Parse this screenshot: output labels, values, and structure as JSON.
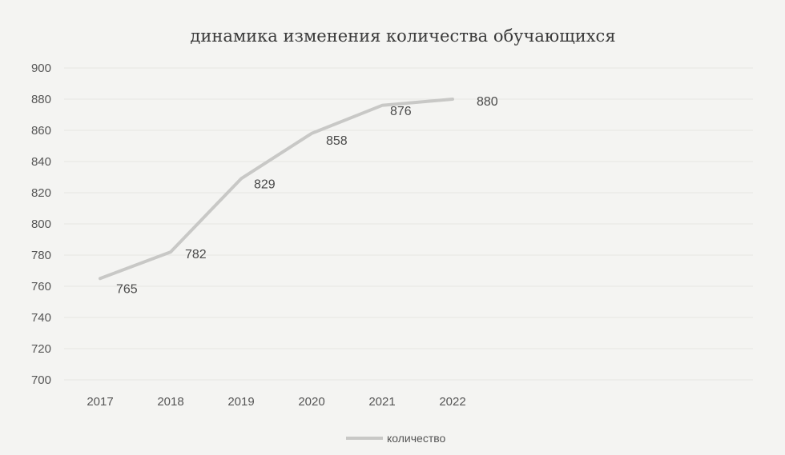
{
  "chart_data": {
    "type": "line",
    "title": "динамика изменения количества обучающихся",
    "categories": [
      "2017",
      "2018",
      "2019",
      "2020",
      "2021",
      "2022"
    ],
    "series": [
      {
        "name": "количество",
        "values": [
          765,
          782,
          829,
          858,
          876,
          880
        ],
        "color": "#c8c8c6"
      }
    ],
    "data_labels": [
      "765",
      "782",
      "829",
      "858",
      "876",
      "880"
    ],
    "ylim": [
      700,
      900
    ],
    "yticks": [
      "700",
      "720",
      "740",
      "760",
      "780",
      "800",
      "820",
      "840",
      "860",
      "880",
      "900"
    ],
    "grid": true,
    "legend_position": "bottom"
  }
}
